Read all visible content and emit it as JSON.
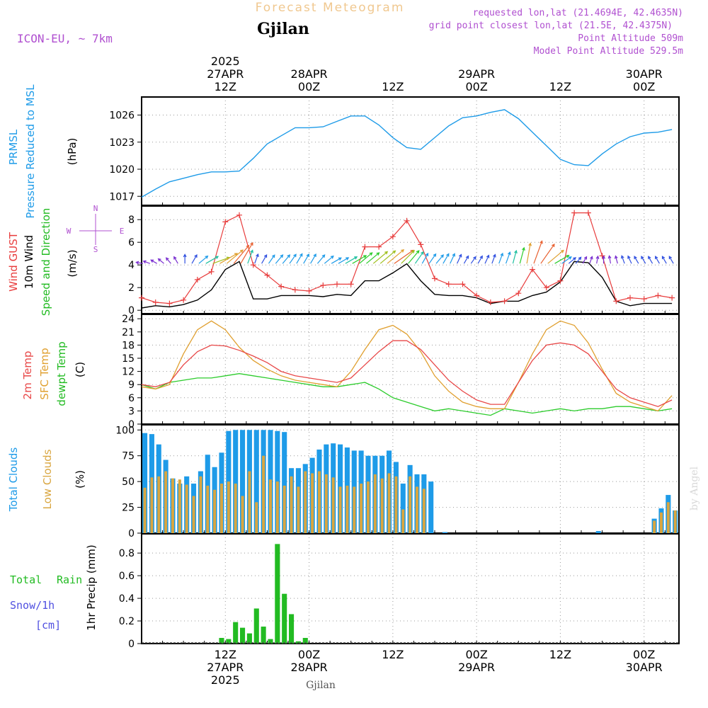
{
  "header": {
    "title": "Forecast Meteogram",
    "location": "Gjilan",
    "model": "ICON-EU, ~ 7km",
    "requested": "requested lon,lat (21.4694E, 42.4635N)",
    "gridpoint": "grid point closest lon,lat (21.5E, 42.4375N)",
    "point_alt": "Point Altitude 509m",
    "model_alt": "Model Point Altitude 529.5m",
    "footer_location": "Gjilan",
    "watermark": "by Angel"
  },
  "time_axis": {
    "top_labels": [
      {
        "t": 12,
        "lines": [
          "2025",
          "27APR",
          "12Z"
        ]
      },
      {
        "t": 24,
        "lines": [
          "28APR",
          "00Z"
        ]
      },
      {
        "t": 36,
        "lines": [
          "12Z"
        ]
      },
      {
        "t": 48,
        "lines": [
          "29APR",
          "00Z"
        ]
      },
      {
        "t": 60,
        "lines": [
          "12Z"
        ]
      },
      {
        "t": 72,
        "lines": [
          "30APR",
          "00Z"
        ]
      }
    ],
    "bottom_labels": [
      {
        "t": 12,
        "lines": [
          "12Z",
          "27APR",
          "2025"
        ]
      },
      {
        "t": 24,
        "lines": [
          "00Z",
          "28APR"
        ]
      },
      {
        "t": 36,
        "lines": [
          "12Z"
        ]
      },
      {
        "t": 48,
        "lines": [
          "00Z",
          "29APR"
        ]
      },
      {
        "t": 60,
        "lines": [
          "12Z"
        ]
      },
      {
        "t": 72,
        "lines": [
          "00Z",
          "30APR"
        ]
      }
    ]
  },
  "panel_labels": {
    "pressure": {
      "a": "PRMSL",
      "b": "Pressure Reduced to MSL",
      "unit": "(hPa)"
    },
    "wind": {
      "gust": "Wind GUST",
      "w10": "10m Wind",
      "dir": "Speed and Direction",
      "unit": "(m/s)",
      "compass_n": "N",
      "compass_s": "S",
      "compass_w": "W",
      "compass_e": "E"
    },
    "temp": {
      "t2m": "2m Temp",
      "sfc": "SFC Temp",
      "dew": "dewpt Temp",
      "unit": "(C)"
    },
    "cloud": {
      "total": "Total Clouds",
      "low": "Low Clouds",
      "unit": "(%)"
    },
    "precip": {
      "rain_a": "Total",
      "rain_b": "Rain",
      "snow": "Snow/1h",
      "snow_unit": "[cm]",
      "unit": "1hr Precip (mm)"
    }
  },
  "colors": {
    "pressure": "#1e9be8",
    "gust": "#e83c3c",
    "wind": "#000000",
    "t2m": "#e84848",
    "sfc": "#e0a030",
    "dew": "#2ccc2c",
    "total_cloud": "#1e9be8",
    "low_cloud": "#d9a640",
    "rain": "#22bb22",
    "snow": "#5050e0",
    "title": "#f0c890",
    "info": "#b050d0"
  },
  "chart_data": [
    {
      "type": "line",
      "title": "PRMSL Pressure Reduced to MSL",
      "ylabel": "(hPa)",
      "x_unit": "hours from 27APR 00Z",
      "ylim": [
        1016,
        1028
      ],
      "yticks": [
        1017,
        1020,
        1023,
        1026
      ],
      "series": [
        {
          "name": "PRMSL",
          "x": [
            0,
            2,
            4,
            6,
            8,
            10,
            12,
            14,
            16,
            18,
            20,
            22,
            24,
            26,
            28,
            30,
            32,
            34,
            36,
            38,
            40,
            42,
            44,
            46,
            48,
            50,
            52,
            54,
            56,
            58,
            60,
            62,
            64,
            66,
            68,
            70,
            72,
            74,
            76
          ],
          "values": [
            1016.9,
            1017.8,
            1018.6,
            1019.0,
            1019.4,
            1019.7,
            1019.7,
            1019.8,
            1021.2,
            1022.8,
            1023.7,
            1024.6,
            1024.6,
            1024.7,
            1025.3,
            1025.9,
            1025.9,
            1024.9,
            1023.5,
            1022.4,
            1022.2,
            1023.5,
            1024.8,
            1025.7,
            1025.9,
            1026.3,
            1026.6,
            1025.6,
            1024.1,
            1022.6,
            1021.1,
            1020.5,
            1020.4,
            1021.7,
            1022.8,
            1023.6,
            1024.0,
            1024.1,
            1024.4
          ]
        }
      ]
    },
    {
      "type": "line",
      "title": "Wind GUST / 10m Wind Speed and Direction",
      "ylabel": "(m/s)",
      "x_unit": "hours from 27APR 00Z",
      "ylim": [
        -0.3,
        9.2
      ],
      "yticks": [
        0,
        2,
        4,
        6,
        8
      ],
      "series": [
        {
          "name": "Wind GUST",
          "x": [
            0,
            2,
            4,
            6,
            8,
            10,
            12,
            14,
            16,
            18,
            20,
            22,
            24,
            26,
            28,
            30,
            32,
            34,
            36,
            38,
            40,
            42,
            44,
            46,
            48,
            50,
            52,
            54,
            56,
            58,
            60,
            62,
            64,
            66,
            68,
            70,
            72,
            74,
            76
          ],
          "values": [
            1.1,
            0.7,
            0.6,
            0.9,
            2.7,
            3.4,
            7.8,
            8.4,
            4.0,
            3.1,
            2.1,
            1.8,
            1.7,
            2.2,
            2.3,
            2.3,
            5.6,
            5.6,
            6.5,
            7.9,
            5.8,
            2.8,
            2.3,
            2.3,
            1.3,
            0.7,
            0.8,
            1.5,
            3.6,
            2.0,
            2.6,
            8.6,
            8.6,
            4.8,
            0.8,
            1.1,
            1.0,
            1.3,
            1.1
          ]
        },
        {
          "name": "10m Wind",
          "x": [
            0,
            2,
            4,
            6,
            8,
            10,
            12,
            14,
            16,
            18,
            20,
            22,
            24,
            26,
            28,
            30,
            32,
            34,
            36,
            38,
            40,
            42,
            44,
            46,
            48,
            50,
            52,
            54,
            56,
            58,
            60,
            62,
            64,
            66,
            68,
            70,
            72,
            74,
            76
          ],
          "values": [
            0.2,
            0.4,
            0.3,
            0.5,
            0.9,
            1.8,
            3.6,
            4.3,
            1.0,
            1.0,
            1.3,
            1.3,
            1.3,
            1.2,
            1.4,
            1.3,
            2.6,
            2.6,
            3.3,
            4.1,
            2.6,
            1.4,
            1.3,
            1.3,
            1.1,
            0.6,
            0.8,
            0.8,
            1.3,
            1.6,
            2.5,
            4.3,
            4.2,
            2.9,
            0.8,
            0.4,
            0.6,
            0.6,
            0.6
          ]
        }
      ]
    },
    {
      "type": "line",
      "title": "2m Temp / SFC Temp / dewpt Temp",
      "ylabel": "(C)",
      "x_unit": "hours from 27APR 00Z",
      "ylim": [
        0,
        25
      ],
      "yticks": [
        0,
        3,
        6,
        9,
        12,
        15,
        18,
        21,
        24
      ],
      "series": [
        {
          "name": "2m Temp",
          "x": [
            0,
            2,
            4,
            6,
            8,
            10,
            12,
            14,
            16,
            18,
            20,
            22,
            24,
            26,
            28,
            30,
            32,
            34,
            36,
            38,
            40,
            42,
            44,
            46,
            48,
            50,
            52,
            54,
            56,
            58,
            60,
            62,
            64,
            66,
            68,
            70,
            72,
            74,
            76
          ],
          "values": [
            9.0,
            8.5,
            9.5,
            13.5,
            16.5,
            18.0,
            17.8,
            16.8,
            15.5,
            14.0,
            12.0,
            11.0,
            10.5,
            10.0,
            9.5,
            10.5,
            13.5,
            16.5,
            19.0,
            19.0,
            17.0,
            13.5,
            10.0,
            7.5,
            5.5,
            4.5,
            4.5,
            9.5,
            14.5,
            18.0,
            18.5,
            18.0,
            16.0,
            12.0,
            8.0,
            6.0,
            5.0,
            4.0,
            5.5
          ]
        },
        {
          "name": "SFC Temp",
          "x": [
            0,
            2,
            4,
            6,
            8,
            10,
            12,
            14,
            16,
            18,
            20,
            22,
            24,
            26,
            28,
            30,
            32,
            34,
            36,
            38,
            40,
            42,
            44,
            46,
            48,
            50,
            52,
            54,
            56,
            58,
            60,
            62,
            64,
            66,
            68,
            70,
            72,
            74,
            76
          ],
          "values": [
            8.5,
            8.0,
            9.0,
            16.0,
            21.5,
            23.5,
            21.5,
            17.5,
            14.5,
            12.5,
            11.0,
            10.0,
            9.5,
            9.0,
            8.5,
            12.0,
            17.0,
            21.5,
            22.5,
            20.5,
            16.5,
            11.0,
            7.5,
            5.0,
            4.0,
            3.5,
            3.5,
            9.5,
            16.0,
            21.5,
            23.5,
            22.5,
            18.5,
            12.5,
            7.0,
            5.0,
            4.0,
            3.0,
            6.5
          ]
        },
        {
          "name": "dewpt Temp",
          "x": [
            0,
            2,
            4,
            6,
            8,
            10,
            12,
            14,
            16,
            18,
            20,
            22,
            24,
            26,
            28,
            30,
            32,
            34,
            36,
            38,
            40,
            42,
            44,
            46,
            48,
            50,
            52,
            54,
            56,
            58,
            60,
            62,
            64,
            66,
            68,
            70,
            72,
            74,
            76
          ],
          "values": [
            9.0,
            8.0,
            9.5,
            10.0,
            10.5,
            10.5,
            11.0,
            11.5,
            11.0,
            10.5,
            10.0,
            9.5,
            9.0,
            8.5,
            8.5,
            9.0,
            9.5,
            8.0,
            6.0,
            5.0,
            4.0,
            3.0,
            3.5,
            3.0,
            2.5,
            2.0,
            3.5,
            3.0,
            2.5,
            3.0,
            3.5,
            3.0,
            3.5,
            3.5,
            4.0,
            4.0,
            3.5,
            3.0,
            3.5
          ]
        }
      ]
    },
    {
      "type": "bar",
      "title": "Total Clouds / Low Clouds",
      "ylabel": "(%)",
      "x_unit": "hours from 27APR 00Z",
      "ylim": [
        0,
        105
      ],
      "yticks": [
        0,
        25,
        50,
        75,
        100
      ],
      "x": [
        0,
        1,
        2,
        3,
        4,
        5,
        6,
        7,
        8,
        9,
        10,
        11,
        12,
        13,
        14,
        15,
        16,
        17,
        18,
        19,
        20,
        21,
        22,
        23,
        24,
        25,
        26,
        27,
        28,
        29,
        30,
        31,
        32,
        33,
        34,
        35,
        36,
        37,
        38,
        39,
        40,
        41,
        42,
        43,
        44,
        45,
        46,
        47,
        48,
        49,
        50,
        51,
        52,
        53,
        54,
        55,
        56,
        57,
        58,
        59,
        60,
        61,
        62,
        63,
        64,
        65,
        66,
        67,
        68,
        69,
        70,
        71,
        72,
        73,
        74,
        75,
        76
      ],
      "series": [
        {
          "name": "Total Clouds",
          "values": [
            97,
            96,
            86,
            71,
            53,
            48,
            55,
            48,
            60,
            76,
            64,
            78,
            99,
            100,
            100,
            100,
            100,
            100,
            100,
            99,
            98,
            63,
            63,
            67,
            73,
            81,
            86,
            87,
            86,
            83,
            80,
            80,
            75,
            75,
            75,
            80,
            69,
            48,
            66,
            57,
            57,
            50,
            0,
            1,
            0,
            0,
            0,
            0,
            0,
            0,
            0,
            0,
            0,
            0,
            0,
            0,
            0,
            0,
            0,
            0,
            0,
            0,
            0,
            0,
            0,
            2,
            0,
            0,
            0,
            0,
            0,
            0,
            0,
            14,
            24,
            37,
            22
          ]
        },
        {
          "name": "Low Clouds",
          "values": [
            44,
            54,
            55,
            60,
            53,
            52,
            47,
            36,
            55,
            46,
            42,
            48,
            50,
            48,
            36,
            60,
            30,
            75,
            52,
            50,
            46,
            55,
            45,
            60,
            58,
            60,
            57,
            54,
            45,
            46,
            45,
            48,
            50,
            57,
            53,
            58,
            55,
            23,
            55,
            45,
            43,
            0,
            0,
            0,
            0,
            0,
            0,
            0,
            0,
            0,
            0,
            0,
            0,
            0,
            0,
            0,
            0,
            0,
            0,
            0,
            0,
            0,
            0,
            0,
            0,
            0,
            0,
            0,
            0,
            0,
            0,
            0,
            0,
            12,
            20,
            30,
            22
          ]
        }
      ]
    },
    {
      "type": "bar",
      "title": "1hr Precip",
      "ylabel": "1hr Precip (mm)",
      "x_unit": "hours from 27APR 00Z",
      "ylim": [
        0,
        0.97
      ],
      "yticks": [
        0,
        0.2,
        0.4,
        0.6,
        0.8
      ],
      "series": [
        {
          "name": "Total Rain",
          "x": [
            11,
            12,
            13,
            14,
            15,
            16,
            17,
            18,
            19,
            20,
            21,
            22,
            23
          ],
          "values": [
            0.05,
            0.04,
            0.19,
            0.14,
            0.09,
            0.31,
            0.15,
            0.04,
            0.88,
            0.44,
            0.26,
            0.02,
            0.05
          ]
        }
      ]
    }
  ],
  "wind_barbs": {
    "x": [
      0,
      1,
      2,
      3,
      4,
      5,
      6,
      7,
      8,
      9,
      10,
      11,
      12,
      13,
      14,
      15,
      16,
      17,
      18,
      19,
      20,
      21,
      22,
      23,
      24,
      25,
      26,
      27,
      28,
      29,
      30,
      31,
      32,
      33,
      34,
      35,
      36,
      37,
      38,
      39,
      40,
      41,
      42,
      43,
      44,
      45,
      46,
      47,
      48,
      49,
      50,
      51,
      52,
      53,
      54,
      55,
      56,
      57,
      58,
      59,
      60,
      61,
      62,
      63,
      64,
      65,
      66,
      67,
      68,
      69,
      70,
      71,
      72,
      73,
      74,
      75,
      76
    ],
    "direction_deg": [
      100,
      110,
      120,
      130,
      140,
      150,
      180,
      210,
      230,
      240,
      250,
      240,
      230,
      220,
      210,
      200,
      200,
      210,
      215,
      220,
      220,
      215,
      210,
      210,
      210,
      220,
      230,
      240,
      240,
      240,
      240,
      230,
      230,
      230,
      230,
      230,
      235,
      225,
      220,
      215,
      210,
      215,
      220,
      210,
      205,
      205,
      210,
      215,
      210,
      205,
      200,
      200,
      200,
      195,
      195,
      190,
      200,
      215,
      230,
      240,
      235,
      230,
      220,
      210,
      200,
      190,
      180,
      170,
      165,
      160,
      155,
      150,
      150,
      150,
      150,
      150,
      150
    ],
    "speed_ms": [
      0.3,
      0.3,
      0.3,
      0.4,
      0.4,
      0.5,
      0.8,
      1.0,
      1.4,
      2.0,
      2.8,
      3.4,
      3.6,
      4.2,
      4.3,
      2.0,
      1.0,
      1.0,
      1.1,
      1.3,
      1.3,
      1.3,
      1.3,
      1.2,
      1.2,
      1.3,
      1.4,
      1.3,
      1.4,
      1.8,
      2.4,
      2.6,
      2.6,
      3.0,
      3.3,
      3.7,
      4.1,
      3.0,
      2.6,
      2.0,
      1.4,
      1.4,
      1.3,
      1.3,
      1.2,
      1.0,
      0.7,
      0.6,
      0.7,
      0.8,
      0.9,
      1.2,
      1.5,
      1.8,
      2.5,
      3.5,
      4.3,
      4.2,
      3.5,
      2.5,
      1.4,
      0.8,
      0.6,
      0.5,
      0.4,
      0.4,
      0.4,
      0.5,
      0.5,
      0.6,
      0.6,
      0.6,
      0.6,
      0.6,
      0.6,
      0.6,
      0.6
    ]
  }
}
